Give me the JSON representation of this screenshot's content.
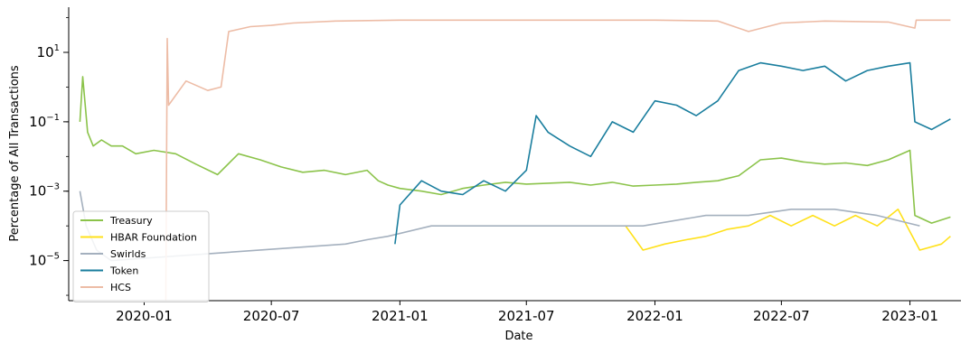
{
  "chart_data": {
    "type": "line",
    "xlabel": "Date",
    "ylabel": "Percentage of All Transactions",
    "yscale": "log",
    "ylim": [
      7e-07,
      200
    ],
    "xlim": [
      "2019-09-15",
      "2023-03-15"
    ],
    "x_ticks": [
      "2020-01",
      "2020-07",
      "2021-01",
      "2021-07",
      "2022-01",
      "2022-07",
      "2023-01"
    ],
    "y_ticks": [
      {
        "value": 1e-05,
        "base": "10",
        "exp": "−5"
      },
      {
        "value": 0.001,
        "base": "10",
        "exp": "−3"
      },
      {
        "value": 0.1,
        "base": "10",
        "exp": "−1"
      },
      {
        "value": 10,
        "base": "10",
        "exp": "1"
      }
    ],
    "grid": false,
    "legend_position": "lower-left",
    "series": [
      {
        "name": "Treasury",
        "color": "#8BC34A",
        "points": [
          [
            "2019-10-01",
            0.1
          ],
          [
            "2019-10-05",
            2
          ],
          [
            "2019-10-12",
            0.05
          ],
          [
            "2019-10-20",
            0.02
          ],
          [
            "2019-11-01",
            0.03
          ],
          [
            "2019-11-15",
            0.02
          ],
          [
            "2019-12-01",
            0.02
          ],
          [
            "2019-12-20",
            0.012
          ],
          [
            "2020-01-15",
            0.015
          ],
          [
            "2020-02-15",
            0.012
          ],
          [
            "2020-03-15",
            0.006
          ],
          [
            "2020-04-15",
            0.003
          ],
          [
            "2020-05-15",
            0.012
          ],
          [
            "2020-06-15",
            0.008
          ],
          [
            "2020-07-15",
            0.005
          ],
          [
            "2020-08-15",
            0.0035
          ],
          [
            "2020-09-15",
            0.004
          ],
          [
            "2020-10-15",
            0.003
          ],
          [
            "2020-11-15",
            0.004
          ],
          [
            "2020-12-01",
            0.002
          ],
          [
            "2020-12-15",
            0.0015
          ],
          [
            "2021-01-01",
            0.0012
          ],
          [
            "2021-02-01",
            0.001
          ],
          [
            "2021-03-01",
            0.0008
          ],
          [
            "2021-04-01",
            0.0012
          ],
          [
            "2021-05-01",
            0.0015
          ],
          [
            "2021-06-01",
            0.0018
          ],
          [
            "2021-07-01",
            0.0016
          ],
          [
            "2021-08-01",
            0.0017
          ],
          [
            "2021-09-01",
            0.0018
          ],
          [
            "2021-10-01",
            0.0015
          ],
          [
            "2021-11-01",
            0.0018
          ],
          [
            "2021-12-01",
            0.0014
          ],
          [
            "2022-01-01",
            0.0015
          ],
          [
            "2022-02-01",
            0.0016
          ],
          [
            "2022-03-01",
            0.0018
          ],
          [
            "2022-04-01",
            0.002
          ],
          [
            "2022-05-01",
            0.0028
          ],
          [
            "2022-06-01",
            0.008
          ],
          [
            "2022-07-01",
            0.009
          ],
          [
            "2022-08-01",
            0.007
          ],
          [
            "2022-09-01",
            0.006
          ],
          [
            "2022-10-01",
            0.0065
          ],
          [
            "2022-11-01",
            0.0055
          ],
          [
            "2022-12-01",
            0.008
          ],
          [
            "2023-01-01",
            0.015
          ],
          [
            "2023-01-08",
            0.0002
          ],
          [
            "2023-02-01",
            0.00012
          ],
          [
            "2023-02-28",
            0.00018
          ]
        ]
      },
      {
        "name": "HBAR Foundation",
        "color": "#FFE11A",
        "points": [
          [
            "2021-11-20",
            0.0001
          ],
          [
            "2021-12-15",
            2e-05
          ],
          [
            "2022-01-15",
            3e-05
          ],
          [
            "2022-02-15",
            4e-05
          ],
          [
            "2022-03-15",
            5e-05
          ],
          [
            "2022-04-15",
            8e-05
          ],
          [
            "2022-05-15",
            0.0001
          ],
          [
            "2022-06-15",
            0.0002
          ],
          [
            "2022-07-15",
            0.0001
          ],
          [
            "2022-08-15",
            0.0002
          ],
          [
            "2022-09-15",
            0.0001
          ],
          [
            "2022-10-15",
            0.0002
          ],
          [
            "2022-11-15",
            0.0001
          ],
          [
            "2022-12-15",
            0.0003
          ],
          [
            "2023-01-15",
            2e-05
          ],
          [
            "2023-02-15",
            3e-05
          ],
          [
            "2023-02-28",
            5e-05
          ]
        ]
      },
      {
        "name": "Swirlds",
        "color": "#A4B0BE",
        "points": [
          [
            "2019-10-01",
            0.001
          ],
          [
            "2019-10-10",
            0.0001
          ],
          [
            "2019-10-25",
            2e-05
          ],
          [
            "2019-11-15",
            1e-05
          ],
          [
            "2020-10-15",
            3e-05
          ],
          [
            "2020-11-15",
            4e-05
          ],
          [
            "2020-12-15",
            5e-05
          ],
          [
            "2021-02-15",
            0.0001
          ],
          [
            "2021-05-15",
            0.0001
          ],
          [
            "2021-08-15",
            0.0001
          ],
          [
            "2021-10-15",
            0.0001
          ],
          [
            "2021-12-15",
            0.0001
          ],
          [
            "2022-03-15",
            0.0002
          ],
          [
            "2022-05-15",
            0.0002
          ],
          [
            "2022-07-15",
            0.0003
          ],
          [
            "2022-09-15",
            0.0003
          ],
          [
            "2022-11-15",
            0.0002
          ],
          [
            "2023-01-15",
            0.0001
          ]
        ]
      },
      {
        "name": "Token",
        "color": "#1A7E9E",
        "points": [
          [
            "2020-12-25",
            3e-05
          ],
          [
            "2021-01-01",
            0.0004
          ],
          [
            "2021-02-01",
            0.002
          ],
          [
            "2021-03-01",
            0.001
          ],
          [
            "2021-04-01",
            0.0008
          ],
          [
            "2021-05-01",
            0.002
          ],
          [
            "2021-06-01",
            0.001
          ],
          [
            "2021-07-01",
            0.004
          ],
          [
            "2021-07-15",
            0.15
          ],
          [
            "2021-08-01",
            0.05
          ],
          [
            "2021-09-01",
            0.02
          ],
          [
            "2021-10-01",
            0.01
          ],
          [
            "2021-11-01",
            0.1
          ],
          [
            "2021-12-01",
            0.05
          ],
          [
            "2022-01-01",
            0.4
          ],
          [
            "2022-02-01",
            0.3
          ],
          [
            "2022-03-01",
            0.15
          ],
          [
            "2022-04-01",
            0.4
          ],
          [
            "2022-05-01",
            3
          ],
          [
            "2022-06-01",
            5
          ],
          [
            "2022-07-01",
            4
          ],
          [
            "2022-08-01",
            3
          ],
          [
            "2022-09-01",
            4
          ],
          [
            "2022-10-01",
            1.5
          ],
          [
            "2022-11-01",
            3
          ],
          [
            "2022-12-01",
            4
          ],
          [
            "2023-01-01",
            5
          ],
          [
            "2023-01-08",
            0.1
          ],
          [
            "2023-02-01",
            0.06
          ],
          [
            "2023-02-28",
            0.12
          ]
        ]
      },
      {
        "name": "HCS",
        "color": "#EDBCA6",
        "points": [
          [
            "2020-02-01",
            7e-07
          ],
          [
            "2020-02-03",
            25
          ],
          [
            "2020-02-05",
            0.3
          ],
          [
            "2020-03-01",
            1.5
          ],
          [
            "2020-04-01",
            0.8
          ],
          [
            "2020-04-20",
            1
          ],
          [
            "2020-05-01",
            40
          ],
          [
            "2020-06-01",
            55
          ],
          [
            "2020-07-01",
            60
          ],
          [
            "2020-08-01",
            70
          ],
          [
            "2020-10-01",
            80
          ],
          [
            "2021-01-01",
            85
          ],
          [
            "2021-07-01",
            85
          ],
          [
            "2022-01-01",
            85
          ],
          [
            "2022-04-01",
            80
          ],
          [
            "2022-05-15",
            40
          ],
          [
            "2022-07-01",
            70
          ],
          [
            "2022-09-01",
            80
          ],
          [
            "2022-12-01",
            75
          ],
          [
            "2023-01-08",
            50
          ],
          [
            "2023-01-10",
            85
          ],
          [
            "2023-02-28",
            85
          ]
        ]
      }
    ]
  }
}
